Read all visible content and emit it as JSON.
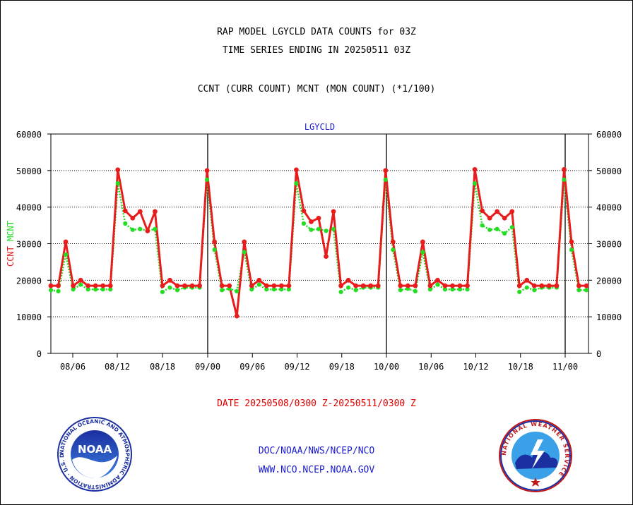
{
  "title_line1": "RAP MODEL LGYCLD DATA COUNTS for 03Z",
  "title_line2": "TIME SERIES ENDING IN 20250511 03Z",
  "subtitle": "CCNT (CURR COUNT) MCNT (MON COUNT) (*1/100)",
  "date_range": "DATE 20250508/0300 Z-20250511/0300 Z",
  "links": [
    "DOC/NOAA/NWS/NCEP/NCO",
    "WWW.NCO.NCEP.NOAA.GOV"
  ],
  "logos": {
    "left": {
      "icon": "noaa-logo-icon",
      "text": "NOAA",
      "ring_text": "NATIONAL OCEANIC AND ATMOSPHERIC ADMINISTRATION · U.S. DEPARTMENT OF COMMERCE"
    },
    "right": {
      "icon": "nws-logo-icon",
      "ring_text": "NATIONAL WEATHER SERVICE"
    }
  },
  "colors": {
    "ccnt": "#e81c1c",
    "mcnt": "#22dd22",
    "label": "#1a1ad0",
    "grid": "#000000"
  },
  "chart_data": {
    "type": "line",
    "title": "LGYCLD",
    "ylabel_left": [
      "CCNT",
      "MCNT"
    ],
    "ylim": [
      0,
      60000
    ],
    "yticks": [
      0,
      10000,
      20000,
      30000,
      40000,
      50000,
      60000
    ],
    "xtick_labels": [
      "08/06",
      "08/12",
      "08/18",
      "09/00",
      "09/06",
      "09/12",
      "09/18",
      "10/00",
      "10/06",
      "10/12",
      "10/18",
      "11/00"
    ],
    "day_boundaries": [
      "09/00",
      "10/00",
      "11/00"
    ],
    "grid": true,
    "series": [
      {
        "name": "CCNT",
        "values": [
          18500,
          18500,
          30500,
          18500,
          20000,
          18500,
          18500,
          18500,
          18500,
          50200,
          39000,
          37000,
          38800,
          33500,
          38800,
          18500,
          20000,
          18500,
          18500,
          18500,
          18500,
          50000,
          30500,
          18500,
          18500,
          10200,
          30500,
          18500,
          20000,
          18500,
          18500,
          18500,
          18500,
          50200,
          39000,
          36000,
          37000,
          26500,
          38800,
          18500,
          20000,
          18500,
          18500,
          18500,
          18500,
          50000,
          30500,
          18500,
          18500,
          18500,
          30500,
          18500,
          20000,
          18500,
          18500,
          18500,
          18500,
          50300,
          39000,
          37000,
          38800,
          37000,
          38800,
          18500,
          20000,
          18500,
          18500,
          18500,
          18500,
          50300,
          30500,
          18500,
          18500
        ]
      },
      {
        "name": "MCNT",
        "values": [
          17300,
          17000,
          27000,
          17500,
          18800,
          17500,
          17500,
          17500,
          17500,
          46500,
          35500,
          33800,
          34000,
          33500,
          34000,
          16800,
          18000,
          17300,
          18000,
          18000,
          18000,
          47500,
          28300,
          17300,
          17700,
          17000,
          27700,
          17500,
          18800,
          17500,
          17500,
          17500,
          17500,
          46500,
          35500,
          33800,
          34000,
          33500,
          34000,
          16800,
          18000,
          17300,
          18000,
          18000,
          18000,
          47500,
          28300,
          17300,
          17700,
          17000,
          27700,
          17500,
          18800,
          17500,
          17500,
          17500,
          17500,
          46500,
          35000,
          33800,
          34000,
          32800,
          34500,
          16800,
          18000,
          17300,
          18000,
          18000,
          18000,
          47500,
          28300,
          17300,
          17300
        ]
      }
    ]
  }
}
